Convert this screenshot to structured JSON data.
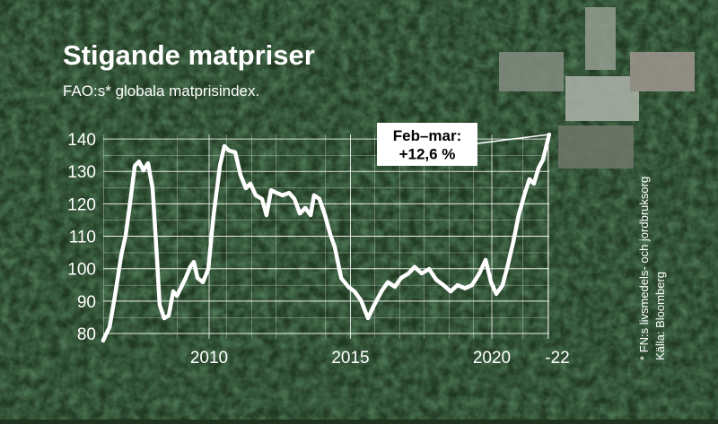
{
  "chart_data": {
    "type": "line",
    "title": "Stigande matpriser",
    "subtitle": "FAO:s* globala matprisindex.",
    "annotation": "Feb–mar:\n+12,6 %",
    "source_note": "* FN:s livsmedels- och jordbruksorg",
    "source": "Källa: Bloomberg",
    "x": [
      2006.25,
      2006.48,
      2006.67,
      2006.89,
      2007.05,
      2007.21,
      2007.37,
      2007.52,
      2007.68,
      2007.84,
      2008.0,
      2008.16,
      2008.25,
      2008.41,
      2008.57,
      2008.73,
      2008.86,
      2009.02,
      2009.17,
      2009.33,
      2009.46,
      2009.59,
      2009.78,
      2009.97,
      2010.16,
      2010.38,
      2010.54,
      2010.7,
      2010.92,
      2011.11,
      2011.3,
      2011.46,
      2011.65,
      2011.87,
      2012.03,
      2012.19,
      2012.38,
      2012.6,
      2012.83,
      2013.02,
      2013.21,
      2013.4,
      2013.59,
      2013.71,
      2013.9,
      2014.1,
      2014.29,
      2014.44,
      2014.67,
      2014.92,
      2015.14,
      2015.37,
      2015.62,
      2015.84,
      2016.1,
      2016.32,
      2016.57,
      2016.79,
      2017.05,
      2017.27,
      2017.52,
      2017.78,
      2018.03,
      2018.29,
      2018.54,
      2018.79,
      2019.05,
      2019.3,
      2019.56,
      2019.78,
      2019.97,
      2020.16,
      2020.38,
      2020.57,
      2020.76,
      2020.95,
      2021.17,
      2021.33,
      2021.49,
      2021.65,
      2021.81,
      2022.03
    ],
    "series": [
      {
        "color": "#ffffff",
        "values": [
          77.8,
          82,
          91.6,
          104,
          110.4,
          120.6,
          131.7,
          133,
          130.3,
          132.5,
          124.8,
          102.7,
          88.8,
          84.7,
          85.5,
          93,
          91.6,
          94.4,
          97.1,
          100.5,
          102.1,
          97.1,
          95.8,
          99.9,
          116.5,
          131.7,
          137.8,
          136.4,
          135.9,
          128.9,
          124.8,
          126.2,
          122.6,
          121.5,
          116.5,
          124.2,
          123.4,
          122.6,
          123.4,
          121.5,
          117,
          118.7,
          116.5,
          122.6,
          121.5,
          116.5,
          110.4,
          106.8,
          97.1,
          94.4,
          93,
          90.2,
          84.7,
          88.8,
          93,
          95.8,
          94.4,
          97.1,
          98.5,
          100.5,
          98.5,
          99.9,
          96.6,
          94.9,
          93,
          94.9,
          93.9,
          94.9,
          98.5,
          102.7,
          95.8,
          92.2,
          94.9,
          101.3,
          108.2,
          116.5,
          123.4,
          127.6,
          126.2,
          131,
          133.6,
          141.4
        ]
      }
    ],
    "xlim": [
      2006.2,
      2022.3
    ],
    "ylim": [
      78,
      142
    ],
    "xticks": [
      2010,
      2015,
      2020,
      {
        "value": 2022,
        "label": "-22"
      }
    ],
    "yticks": [
      80,
      90,
      100,
      110,
      120,
      130,
      140
    ],
    "grid": true
  }
}
